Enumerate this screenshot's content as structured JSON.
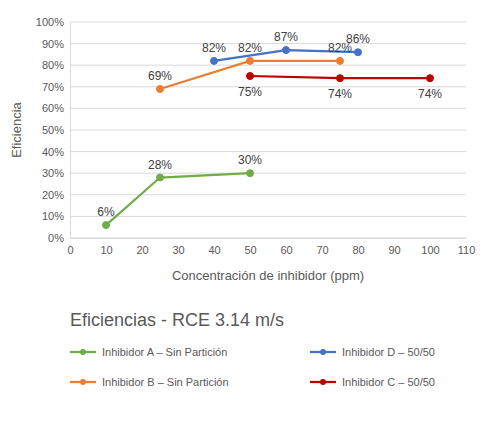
{
  "chart_data": {
    "type": "line",
    "title": "Eficiencias - RCE 3.14 m/s",
    "x_label": "Concentración de inhibidor (ppm)",
    "y_label": "Eficiencia",
    "xlim": [
      0,
      110
    ],
    "xticks": [
      0,
      10,
      20,
      30,
      40,
      50,
      60,
      70,
      80,
      90,
      100,
      110
    ],
    "ylim": [
      0,
      100
    ],
    "yticks": [
      {
        "value": 0,
        "label": "0%"
      },
      {
        "value": 10,
        "label": "10%"
      },
      {
        "value": 20,
        "label": "20%"
      },
      {
        "value": 30,
        "label": "30%"
      },
      {
        "value": 40,
        "label": "40%"
      },
      {
        "value": 50,
        "label": "50%"
      },
      {
        "value": 60,
        "label": "60%"
      },
      {
        "value": 70,
        "label": "70%"
      },
      {
        "value": 80,
        "label": "80%"
      },
      {
        "value": 90,
        "label": "90%"
      },
      {
        "value": 100,
        "label": "100%"
      }
    ],
    "grid": true,
    "legend": "bottom",
    "data_labels": true,
    "marker": "circle",
    "series": [
      {
        "name": "Inhibidor A – Sin Partición",
        "color": "#70ad47",
        "x": [
          10,
          25,
          50
        ],
        "values": [
          6,
          28,
          30
        ],
        "value_labels": [
          "6%",
          "28%",
          "30%"
        ]
      },
      {
        "name": "Inhibidor B – Sin Partición",
        "color": "#ed7d31",
        "x": [
          25,
          50,
          75
        ],
        "values": [
          69,
          82,
          82
        ],
        "value_labels": [
          "69%",
          "82%",
          "82%"
        ]
      },
      {
        "name": "Inhibidor D – 50/50",
        "color": "#4472c4",
        "x": [
          40,
          60,
          80
        ],
        "values": [
          82,
          87,
          86
        ],
        "value_labels": [
          "82%",
          "87%",
          "86%"
        ]
      },
      {
        "name": "Inhibidor C – 50/50",
        "color": "#c00000",
        "x": [
          50,
          75,
          100
        ],
        "values": [
          75,
          74,
          74
        ],
        "value_labels": [
          "75%",
          "74%",
          "74%"
        ]
      }
    ]
  }
}
